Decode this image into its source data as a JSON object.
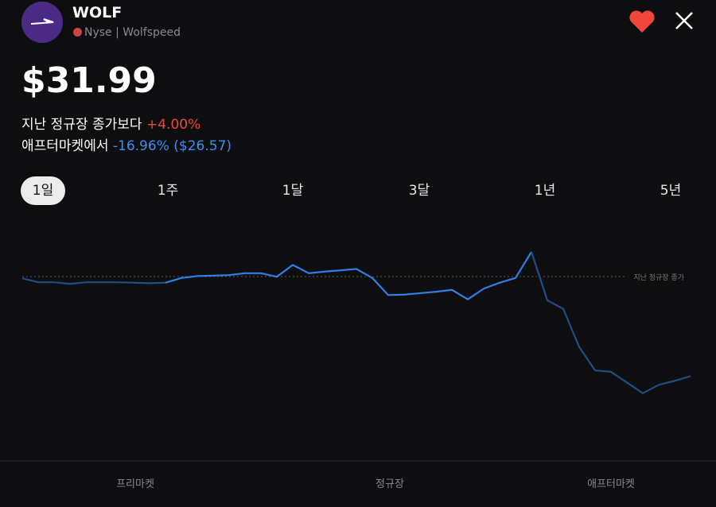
{
  "header": {
    "ticker": "WOLF",
    "exchange": "Nyse",
    "company": "Wolfspeed"
  },
  "quote": {
    "price": "$31.99",
    "change_label": "지난 정규장 종가보다",
    "change": "+4.00%",
    "after_label": "애프터마켓에서",
    "after_change": "-16.96%",
    "after_price": "($26.57)"
  },
  "tabs": [
    "1일",
    "1주",
    "1달",
    "3달",
    "1년",
    "5년"
  ],
  "chart_data": {
    "type": "line",
    "ylim": [
      23,
      32.7
    ],
    "reference": {
      "label": "지난 정규장 종가",
      "value": 30.76
    },
    "series": [
      {
        "name": "프리마켓",
        "color": "#1f4d86",
        "values": [
          30.69,
          30.52,
          30.52,
          30.45,
          30.52,
          30.52,
          30.52,
          30.5,
          30.48,
          30.5
        ]
      },
      {
        "name": "정규장",
        "color": "#2f7fe6",
        "values": [
          30.7,
          30.78,
          30.8,
          30.82,
          30.9,
          30.9,
          30.75,
          31.25,
          30.9,
          30.97,
          31.02,
          31.08,
          30.7,
          29.98,
          30,
          30.06,
          30.12,
          30.2,
          29.8,
          30.25,
          30.5,
          30.7,
          31.8
        ]
      },
      {
        "name": "애프터마켓",
        "color": "#1f4d86",
        "values": [
          29.76,
          29.4,
          27.8,
          26.81,
          26.75,
          26.3,
          25.85,
          26.2,
          26.37,
          26.57
        ]
      }
    ]
  }
}
